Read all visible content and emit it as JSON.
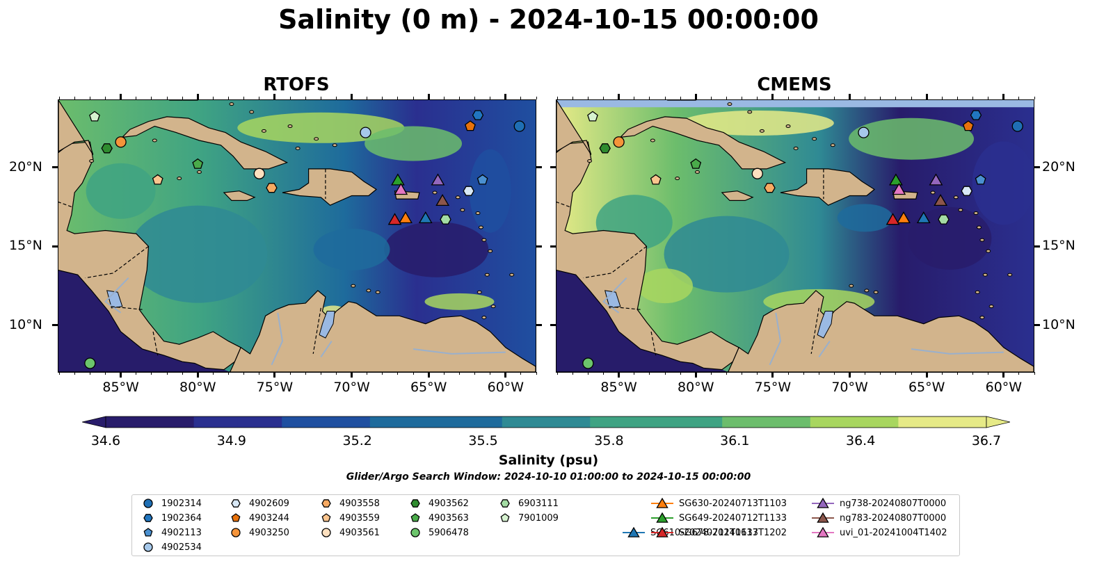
{
  "title": "Salinity (0 m) - 2024-10-15 00:00:00",
  "panels": [
    {
      "title": "RTOFS"
    },
    {
      "title": "CMEMS"
    }
  ],
  "axes": {
    "lon_ticks": [
      "85°W",
      "80°W",
      "75°W",
      "70°W",
      "65°W",
      "60°W"
    ],
    "lat_ticks": [
      "20°N",
      "15°N",
      "10°N"
    ]
  },
  "colorbar": {
    "label": "Salinity (psu)",
    "ticks": [
      "34.6",
      "34.9",
      "35.2",
      "35.5",
      "35.8",
      "36.1",
      "36.4",
      "36.7"
    ],
    "min": 34.6,
    "max": 36.7,
    "extend": "both",
    "colormap_stops": [
      "#281c6b",
      "#2a2f8f",
      "#1f4fa0",
      "#1e6b9c",
      "#2f8a94",
      "#3fa383",
      "#6cbd6c",
      "#a8d65f",
      "#e6ea87"
    ]
  },
  "search_window": "Glider/Argo Search Window: 2024-10-10 01:00:00 to 2024-10-15 00:00:00",
  "colors": {
    "land": "#d2b48c",
    "lake": "#9ab9e3",
    "deep_fresh": "#271c6a",
    "cmems_top_band": "#9ab9e3"
  },
  "legend": [
    {
      "label": "1902314",
      "marker": "circle",
      "color": "#1f6fb4"
    },
    {
      "label": "1902364",
      "marker": "hexagon",
      "color": "#2176c0"
    },
    {
      "label": "4902113",
      "marker": "pentagon",
      "color": "#4a90d0"
    },
    {
      "label": "4902534",
      "marker": "circle",
      "color": "#a6c8ea"
    },
    {
      "label": "4902609",
      "marker": "hexagon",
      "color": "#d8e8f6"
    },
    {
      "label": "4903244",
      "marker": "pentagon",
      "color": "#e8720c"
    },
    {
      "label": "4903250",
      "marker": "circle",
      "color": "#f5943a"
    },
    {
      "label": "4903558",
      "marker": "hexagon",
      "color": "#f8aa62"
    },
    {
      "label": "4903559",
      "marker": "pentagon",
      "color": "#fbc58e"
    },
    {
      "label": "4903561",
      "marker": "circle",
      "color": "#fde0bf"
    },
    {
      "label": "4903562",
      "marker": "hexagon",
      "color": "#2f8c2f"
    },
    {
      "label": "4903563",
      "marker": "pentagon",
      "color": "#4aab4a"
    },
    {
      "label": "5906478",
      "marker": "circle",
      "color": "#6cc56c"
    },
    {
      "label": "6903111",
      "marker": "hexagon",
      "color": "#a4dca4"
    },
    {
      "label": "7901009",
      "marker": "pentagon",
      "color": "#d6f2d0"
    },
    {
      "label": "SG610-20240711T1133",
      "marker": "triangle-line",
      "color": "#1f77b4"
    },
    {
      "label": "SG630-20240713T1103",
      "marker": "triangle-line",
      "color": "#ff7f0e"
    },
    {
      "label": "SG649-20240712T1133",
      "marker": "triangle-line",
      "color": "#2ca02c"
    },
    {
      "label": "SG678-20240617T1202",
      "marker": "triangle-line",
      "color": "#d62728"
    },
    {
      "label": "ng738-20240807T0000",
      "marker": "triangle-line",
      "color": "#9467bd"
    },
    {
      "label": "ng783-20240807T0000",
      "marker": "triangle-line",
      "color": "#8c564b"
    },
    {
      "label": "uvi_01-20241004T1402",
      "marker": "triangle-line",
      "color": "#e377c2"
    }
  ],
  "observations": [
    {
      "label": "1902314",
      "lon": -59.1,
      "lat": 22.6
    },
    {
      "label": "1902364",
      "lon": -61.8,
      "lat": 23.3
    },
    {
      "label": "4902113",
      "lon": -61.5,
      "lat": 19.2
    },
    {
      "label": "4902534",
      "lon": -69.1,
      "lat": 22.2
    },
    {
      "label": "4902609",
      "lon": -62.4,
      "lat": 18.5
    },
    {
      "label": "4903244",
      "lon": -62.3,
      "lat": 22.6
    },
    {
      "label": "4903250",
      "lon": -85.0,
      "lat": 21.6
    },
    {
      "label": "4903558",
      "lon": -75.2,
      "lat": 18.7
    },
    {
      "label": "4903559",
      "lon": -82.6,
      "lat": 19.2
    },
    {
      "label": "4903561",
      "lon": -76.0,
      "lat": 19.6
    },
    {
      "label": "4903562",
      "lon": -85.9,
      "lat": 21.2
    },
    {
      "label": "4903563",
      "lon": -80.0,
      "lat": 20.2
    },
    {
      "label": "5906478",
      "lon": -87.0,
      "lat": 7.6
    },
    {
      "label": "6903111",
      "lon": -63.9,
      "lat": 16.7
    },
    {
      "label": "7901009",
      "lon": -86.7,
      "lat": 23.2
    },
    {
      "label": "SG610-20240711T1133",
      "lon": -65.2,
      "lat": 16.8
    },
    {
      "label": "SG630-20240713T1103",
      "lon": -66.5,
      "lat": 16.8
    },
    {
      "label": "SG649-20240712T1133",
      "lon": -67.0,
      "lat": 19.2
    },
    {
      "label": "SG678-20240617T1202",
      "lon": -67.2,
      "lat": 16.7
    },
    {
      "label": "ng738-20240807T0000",
      "lon": -64.4,
      "lat": 19.2
    },
    {
      "label": "ng783-20240807T0000",
      "lon": -64.1,
      "lat": 17.9
    },
    {
      "label": "uvi_01-20241004T1402",
      "lon": -66.8,
      "lat": 18.6
    }
  ]
}
